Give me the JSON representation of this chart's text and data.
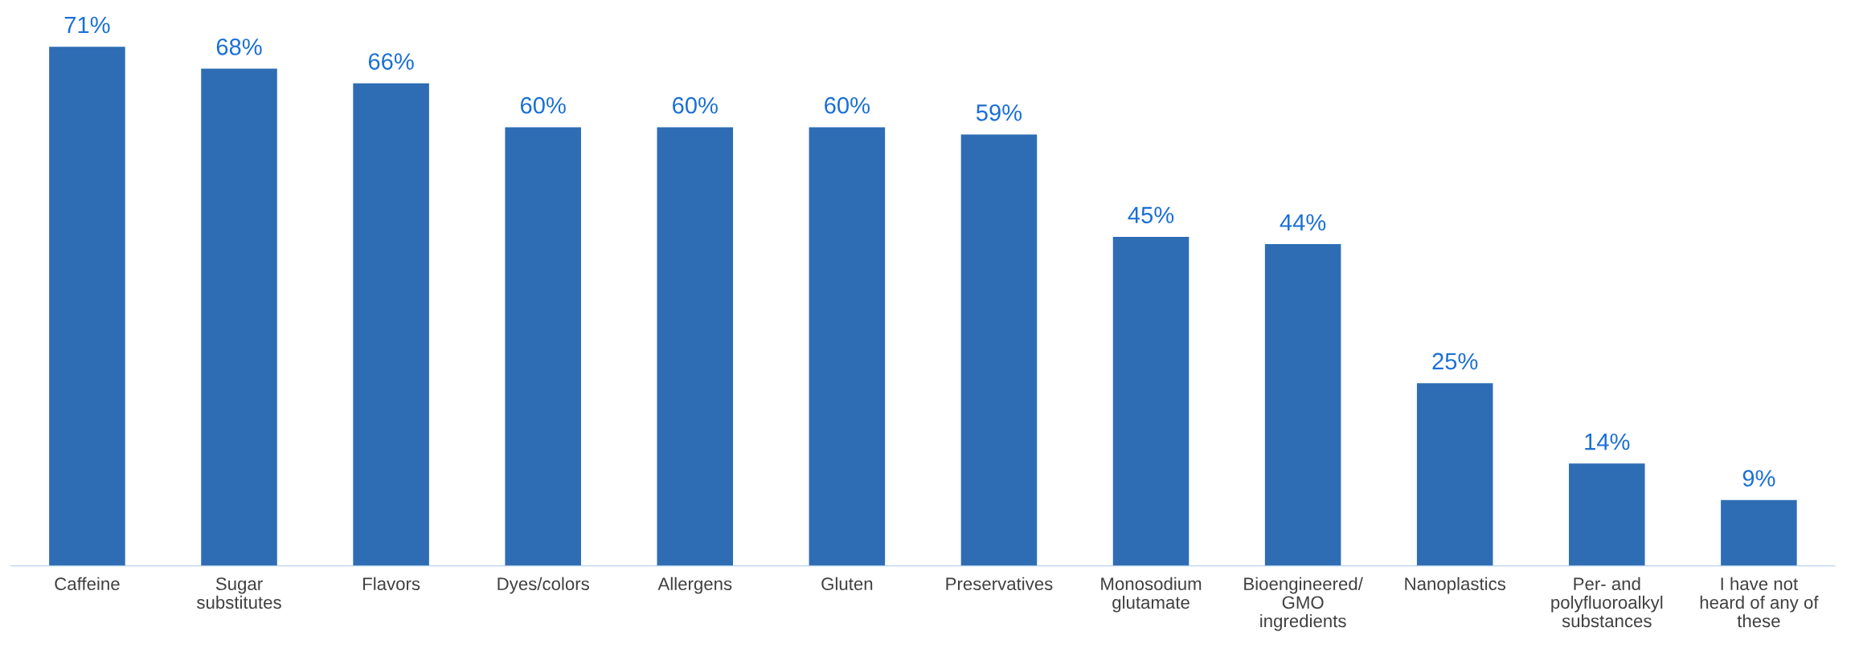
{
  "chart_data": {
    "type": "bar",
    "categories": [
      "Caffeine",
      "Sugar\nsubstitutes",
      "Flavors",
      "Dyes/colors",
      "Allergens",
      "Gluten",
      "Preservatives",
      "Monosodium\nglutamate",
      "Bioengineered/\nGMO\ningredients",
      "Nanoplastics",
      "Per- and\npolyfluoroalkyl\nsubstances",
      "I have not\nheard of any of\nthese"
    ],
    "values": [
      71,
      68,
      66,
      60,
      60,
      60,
      59,
      45,
      44,
      25,
      14,
      9
    ],
    "value_labels": [
      "71%",
      "68%",
      "66%",
      "60%",
      "60%",
      "60%",
      "59%",
      "45%",
      "44%",
      "25%",
      "14%",
      "9%"
    ],
    "color": "#2e6db4",
    "grid": false,
    "legend": false
  }
}
